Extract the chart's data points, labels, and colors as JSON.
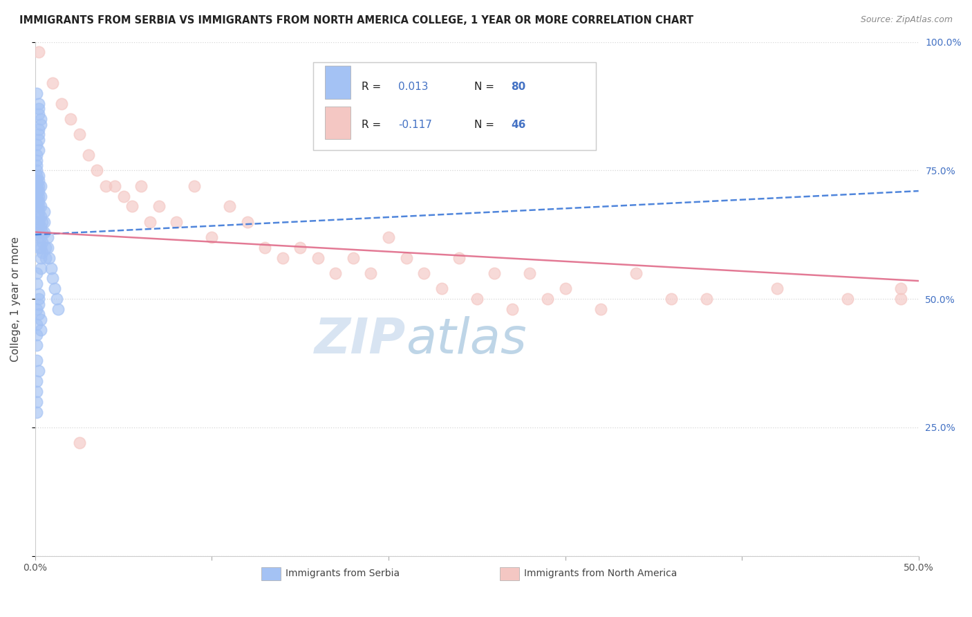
{
  "title": "IMMIGRANTS FROM SERBIA VS IMMIGRANTS FROM NORTH AMERICA COLLEGE, 1 YEAR OR MORE CORRELATION CHART",
  "source": "Source: ZipAtlas.com",
  "ylabel": "College, 1 year or more",
  "xmin": 0.0,
  "xmax": 0.5,
  "ymin": 0.0,
  "ymax": 1.0,
  "blue_color": "#a4c2f4",
  "pink_color": "#f4c7c3",
  "trend_blue_color": "#3c78d8",
  "trend_pink_color": "#e06c8a",
  "watermark_color": "#cfe2f3",
  "watermark_text": "ZIPatlas",
  "serbia_x": [
    0.001,
    0.001,
    0.001,
    0.001,
    0.001,
    0.001,
    0.001,
    0.001,
    0.001,
    0.001,
    0.002,
    0.002,
    0.002,
    0.002,
    0.002,
    0.002,
    0.002,
    0.002,
    0.002,
    0.002,
    0.002,
    0.002,
    0.002,
    0.002,
    0.003,
    0.003,
    0.003,
    0.003,
    0.003,
    0.003,
    0.003,
    0.003,
    0.003,
    0.004,
    0.004,
    0.004,
    0.004,
    0.005,
    0.005,
    0.005,
    0.006,
    0.006,
    0.007,
    0.007,
    0.008,
    0.009,
    0.01,
    0.011,
    0.012,
    0.013,
    0.001,
    0.001,
    0.002,
    0.002,
    0.002,
    0.001,
    0.001,
    0.001,
    0.002,
    0.001,
    0.003,
    0.003,
    0.001,
    0.002,
    0.001,
    0.001,
    0.001,
    0.001,
    0.002,
    0.002,
    0.003,
    0.002,
    0.001,
    0.002,
    0.002,
    0.001,
    0.002,
    0.003,
    0.002,
    0.001
  ],
  "serbia_y": [
    0.72,
    0.75,
    0.73,
    0.7,
    0.71,
    0.68,
    0.69,
    0.74,
    0.76,
    0.77,
    0.72,
    0.71,
    0.73,
    0.68,
    0.7,
    0.69,
    0.67,
    0.74,
    0.66,
    0.65,
    0.63,
    0.64,
    0.62,
    0.6,
    0.72,
    0.7,
    0.68,
    0.66,
    0.64,
    0.62,
    0.6,
    0.58,
    0.56,
    0.65,
    0.63,
    0.61,
    0.59,
    0.67,
    0.65,
    0.63,
    0.6,
    0.58,
    0.62,
    0.6,
    0.58,
    0.56,
    0.54,
    0.52,
    0.5,
    0.48,
    0.55,
    0.53,
    0.51,
    0.49,
    0.47,
    0.45,
    0.43,
    0.41,
    0.5,
    0.48,
    0.46,
    0.44,
    0.38,
    0.36,
    0.34,
    0.32,
    0.3,
    0.28,
    0.79,
    0.82,
    0.85,
    0.88,
    0.9,
    0.83,
    0.86,
    0.78,
    0.81,
    0.84,
    0.87,
    0.8
  ],
  "namerica_x": [
    0.002,
    0.01,
    0.015,
    0.02,
    0.025,
    0.03,
    0.035,
    0.04,
    0.045,
    0.05,
    0.055,
    0.06,
    0.065,
    0.07,
    0.08,
    0.09,
    0.1,
    0.11,
    0.12,
    0.13,
    0.14,
    0.15,
    0.16,
    0.17,
    0.18,
    0.19,
    0.2,
    0.21,
    0.22,
    0.23,
    0.24,
    0.25,
    0.26,
    0.27,
    0.28,
    0.29,
    0.3,
    0.32,
    0.34,
    0.36,
    0.38,
    0.42,
    0.46,
    0.49,
    0.49,
    0.025
  ],
  "namerica_y": [
    0.98,
    0.92,
    0.88,
    0.85,
    0.82,
    0.78,
    0.75,
    0.72,
    0.72,
    0.7,
    0.68,
    0.72,
    0.65,
    0.68,
    0.65,
    0.72,
    0.62,
    0.68,
    0.65,
    0.6,
    0.58,
    0.6,
    0.58,
    0.55,
    0.58,
    0.55,
    0.62,
    0.58,
    0.55,
    0.52,
    0.58,
    0.5,
    0.55,
    0.48,
    0.55,
    0.5,
    0.52,
    0.48,
    0.55,
    0.5,
    0.5,
    0.52,
    0.5,
    0.52,
    0.5,
    0.22
  ],
  "blue_trend_x0": 0.0,
  "blue_trend_y0": 0.625,
  "blue_trend_x1": 0.5,
  "blue_trend_y1": 0.71,
  "pink_trend_x0": 0.0,
  "pink_trend_y0": 0.63,
  "pink_trend_x1": 0.5,
  "pink_trend_y1": 0.535
}
